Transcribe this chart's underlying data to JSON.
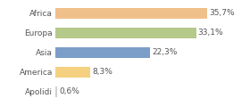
{
  "categories": [
    "Africa",
    "Europa",
    "Asia",
    "America",
    "Apolidi"
  ],
  "values": [
    35.7,
    33.1,
    22.3,
    8.3,
    0.6
  ],
  "labels": [
    "35,7%",
    "33,1%",
    "22,3%",
    "8,3%",
    "0,6%"
  ],
  "bar_colors": [
    "#f0c08a",
    "#b5c98a",
    "#7b9ec8",
    "#f5d080",
    "#d0d0d0"
  ],
  "background_color": "#ffffff",
  "xlim": [
    0,
    44
  ],
  "label_fontsize": 6.5,
  "tick_fontsize": 6.5,
  "bar_height": 0.55
}
